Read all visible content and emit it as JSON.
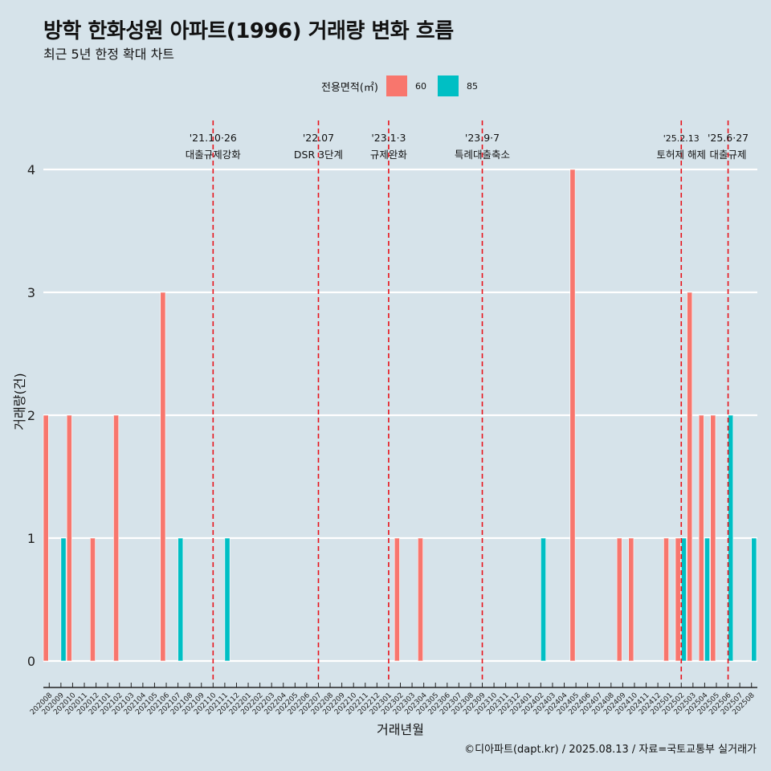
{
  "title": "방학 한화성원 아파트(1996) 거래량 변화 흐름",
  "subtitle": "최근 5년 한정 확대 차트",
  "legend": {
    "title": "전용면적(㎡)",
    "items": [
      {
        "label": "60",
        "color": "#f8766d"
      },
      {
        "label": "85",
        "color": "#00bfc4"
      }
    ]
  },
  "caption": "©디아파트(dapt.kr) / 2025.08.13 / 자료=국토교통부 실거래가",
  "chart_data": {
    "type": "bar",
    "xlabel": "거래년월",
    "ylabel": "거래량(건)",
    "ylim": [
      0,
      4
    ],
    "yticks": [
      0,
      1,
      2,
      3,
      4
    ],
    "grid": true,
    "categories": [
      "202008",
      "202009",
      "202010",
      "202011",
      "202012",
      "202101",
      "202102",
      "202103",
      "202104",
      "202105",
      "202106",
      "202107",
      "202108",
      "202109",
      "202110",
      "202111",
      "202112",
      "202201",
      "202202",
      "202203",
      "202204",
      "202205",
      "202206",
      "202207",
      "202208",
      "202209",
      "202210",
      "202211",
      "202212",
      "202301",
      "202302",
      "202303",
      "202304",
      "202305",
      "202306",
      "202307",
      "202308",
      "202309",
      "202310",
      "202311",
      "202312",
      "202401",
      "202402",
      "202403",
      "202404",
      "202405",
      "202406",
      "202407",
      "202408",
      "202409",
      "202410",
      "202411",
      "202412",
      "202501",
      "202502",
      "202503",
      "202504",
      "202505",
      "202506",
      "202507",
      "202508"
    ],
    "series": [
      {
        "name": "60",
        "color": "#f8766d",
        "values": [
          2,
          0,
          2,
          0,
          1,
          0,
          2,
          0,
          0,
          0,
          3,
          0,
          0,
          0,
          0,
          0,
          0,
          0,
          0,
          0,
          0,
          0,
          0,
          0,
          0,
          0,
          0,
          0,
          0,
          0,
          1,
          0,
          1,
          0,
          0,
          0,
          0,
          0,
          0,
          0,
          0,
          0,
          0,
          0,
          0,
          4,
          0,
          0,
          0,
          1,
          1,
          0,
          0,
          1,
          1,
          3,
          2,
          2,
          0,
          0,
          0
        ]
      },
      {
        "name": "85",
        "color": "#00bfc4",
        "values": [
          0,
          1,
          0,
          0,
          0,
          0,
          0,
          0,
          0,
          0,
          0,
          1,
          0,
          0,
          0,
          1,
          0,
          0,
          0,
          0,
          0,
          0,
          0,
          0,
          0,
          0,
          0,
          0,
          0,
          0,
          0,
          0,
          0,
          0,
          0,
          0,
          0,
          0,
          0,
          0,
          0,
          0,
          1,
          0,
          0,
          0,
          0,
          0,
          0,
          0,
          0,
          0,
          0,
          0,
          1,
          0,
          1,
          0,
          2,
          0,
          1
        ]
      }
    ],
    "annotations": [
      {
        "at": "202110",
        "date": "'21.10·26",
        "label": "대출규제강화"
      },
      {
        "at": "202207",
        "date": "'22.07",
        "label": "DSR 3단계"
      },
      {
        "at": "202301",
        "date": "'23.1·3",
        "label": "규제완화"
      },
      {
        "at": "202309",
        "date": "'23.9·7",
        "label": "특례대출축소"
      },
      {
        "at": "202502",
        "date": "'25.2.13",
        "label": "토허제 해제"
      },
      {
        "at": "202506",
        "date": "'25.6·27",
        "label": "대출규제"
      }
    ]
  }
}
